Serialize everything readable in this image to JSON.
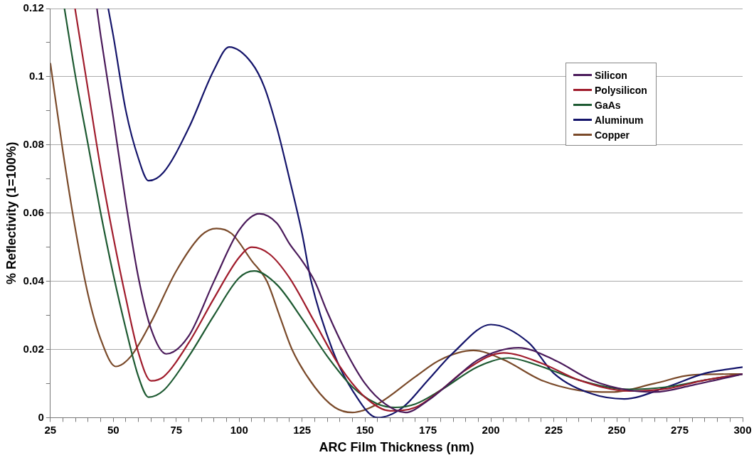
{
  "chart_data": {
    "type": "line",
    "xlabel": "ARC Film Thickness (nm)",
    "ylabel": "% Reflectivity (1=100%)",
    "xlim": [
      25,
      300
    ],
    "xticks": [
      25,
      {
        "value": 30,
        "label": null
      },
      {
        "value": 35,
        "label": null
      },
      {
        "value": 40,
        "label": null
      },
      {
        "value": 45,
        "label": null
      },
      50,
      {
        "value": 55,
        "label": null
      },
      {
        "value": 60,
        "label": null
      },
      {
        "value": 65,
        "label": null
      },
      {
        "value": 70,
        "label": null
      },
      75,
      {
        "value": 80,
        "label": null
      },
      {
        "value": 85,
        "label": null
      },
      {
        "value": 90,
        "label": null
      },
      {
        "value": 95,
        "label": null
      },
      100,
      {
        "value": 105,
        "label": null
      },
      {
        "value": 110,
        "label": null
      },
      {
        "value": 115,
        "label": null
      },
      {
        "value": 120,
        "label": null
      },
      125,
      {
        "value": 130,
        "label": null
      },
      {
        "value": 135,
        "label": null
      },
      {
        "value": 140,
        "label": null
      },
      {
        "value": 145,
        "label": null
      },
      150,
      {
        "value": 155,
        "label": null
      },
      {
        "value": 160,
        "label": null
      },
      {
        "value": 165,
        "label": null
      },
      {
        "value": 170,
        "label": null
      },
      175,
      {
        "value": 180,
        "label": null
      },
      {
        "value": 185,
        "label": null
      },
      {
        "value": 190,
        "label": null
      },
      {
        "value": 195,
        "label": null
      },
      200,
      {
        "value": 205,
        "label": null
      },
      {
        "value": 210,
        "label": null
      },
      {
        "value": 215,
        "label": null
      },
      {
        "value": 220,
        "label": null
      },
      225,
      {
        "value": 230,
        "label": null
      },
      {
        "value": 235,
        "label": null
      },
      {
        "value": 240,
        "label": null
      },
      {
        "value": 245,
        "label": null
      },
      250,
      {
        "value": 255,
        "label": null
      },
      {
        "value": 260,
        "label": null
      },
      {
        "value": 265,
        "label": null
      },
      {
        "value": 270,
        "label": null
      },
      275,
      {
        "value": 280,
        "label": null
      },
      {
        "value": 285,
        "label": null
      },
      {
        "value": 290,
        "label": null
      },
      {
        "value": 295,
        "label": null
      },
      300
    ],
    "ylim": [
      0,
      0.12
    ],
    "yticks": [
      0,
      {
        "value": 0.01,
        "label": null
      },
      0.02,
      {
        "value": 0.03,
        "label": null
      },
      0.04,
      {
        "value": 0.05,
        "label": null
      },
      0.06,
      {
        "value": 0.07,
        "label": null
      },
      0.08,
      {
        "value": 0.09,
        "label": null
      },
      0.1,
      {
        "value": 0.11,
        "label": null
      },
      0.12
    ],
    "grid": "y",
    "legend": "top right",
    "marker": "none",
    "line_style": "solid",
    "series": [
      {
        "name": "Silicon",
        "color": "#4a1a5a",
        "x": [
          43.5,
          45,
          50,
          55,
          60,
          65,
          71,
          80,
          90,
          100,
          108,
          115,
          120,
          125,
          130,
          135,
          142,
          150,
          158,
          166,
          175,
          185,
          195,
          211,
          225,
          240,
          255,
          265,
          280,
          300
        ],
        "values": [
          0.12,
          0.112,
          0.088,
          0.063,
          0.041,
          0.026,
          0.0187,
          0.024,
          0.04,
          0.055,
          0.0598,
          0.057,
          0.051,
          0.046,
          0.04,
          0.031,
          0.02,
          0.01,
          0.004,
          0.0015,
          0.005,
          0.011,
          0.017,
          0.0205,
          0.017,
          0.011,
          0.008,
          0.0075,
          0.0095,
          0.0128
        ]
      },
      {
        "name": "Polysilicon",
        "color": "#a01c2c",
        "x": [
          34.8,
          40,
          45,
          50,
          55,
          60,
          65,
          70,
          80,
          90,
          100,
          105,
          112,
          120,
          130,
          140,
          150,
          160,
          170,
          180,
          190,
          205,
          220,
          235,
          255,
          270,
          285,
          300
        ],
        "values": [
          0.12,
          0.096,
          0.073,
          0.053,
          0.035,
          0.019,
          0.0108,
          0.012,
          0.022,
          0.035,
          0.047,
          0.05,
          0.048,
          0.041,
          0.028,
          0.015,
          0.006,
          0.002,
          0.003,
          0.008,
          0.014,
          0.019,
          0.016,
          0.011,
          0.0078,
          0.0085,
          0.011,
          0.0128
        ]
      },
      {
        "name": "GaAs",
        "color": "#1e5a32",
        "x": [
          30.6,
          35,
          40,
          45,
          50,
          55,
          60,
          64,
          70,
          80,
          90,
          100,
          106,
          115,
          125,
          135,
          145,
          155,
          162,
          170,
          180,
          195,
          207,
          220,
          235,
          255,
          270,
          285,
          300
        ],
        "values": [
          0.12,
          0.1,
          0.08,
          0.06,
          0.042,
          0.026,
          0.012,
          0.006,
          0.008,
          0.018,
          0.03,
          0.041,
          0.043,
          0.039,
          0.029,
          0.018,
          0.009,
          0.004,
          0.003,
          0.004,
          0.008,
          0.015,
          0.0175,
          0.015,
          0.011,
          0.0083,
          0.009,
          0.011,
          0.0128
        ]
      },
      {
        "name": "Aluminum",
        "color": "#14146a",
        "x": [
          48,
          50,
          55,
          60,
          64,
          70,
          80,
          90,
          96,
          105,
          110,
          115,
          120,
          125,
          128.6,
          137,
          145,
          155,
          165,
          175,
          185,
          200,
          215,
          225,
          240,
          253,
          270,
          285,
          300
        ],
        "values": [
          0.12,
          0.112,
          0.09,
          0.076,
          0.0695,
          0.072,
          0.085,
          0.102,
          0.1087,
          0.104,
          0.097,
          0.085,
          0.07,
          0.054,
          0.04,
          0.02,
          0.008,
          0,
          0.003,
          0.011,
          0.019,
          0.0273,
          0.022,
          0.013,
          0.007,
          0.0055,
          0.009,
          0.013,
          0.0148
        ]
      },
      {
        "name": "Copper",
        "color": "#7a4a2a",
        "x": [
          25,
          30,
          35,
          40,
          45,
          51,
          57,
          65,
          75,
          85,
          91,
          97,
          105,
          111,
          116,
          121,
          130,
          138,
          145,
          155,
          170,
          180,
          193,
          205,
          220,
          235,
          248,
          265,
          280,
          300
        ],
        "values": [
          0.104,
          0.078,
          0.055,
          0.036,
          0.023,
          0.015,
          0.018,
          0.028,
          0.043,
          0.0535,
          0.0555,
          0.054,
          0.046,
          0.04,
          0.03,
          0.02,
          0.009,
          0.003,
          0.0015,
          0.004,
          0.012,
          0.017,
          0.0197,
          0.017,
          0.011,
          0.008,
          0.0075,
          0.01,
          0.0125,
          0.0128
        ]
      }
    ]
  }
}
